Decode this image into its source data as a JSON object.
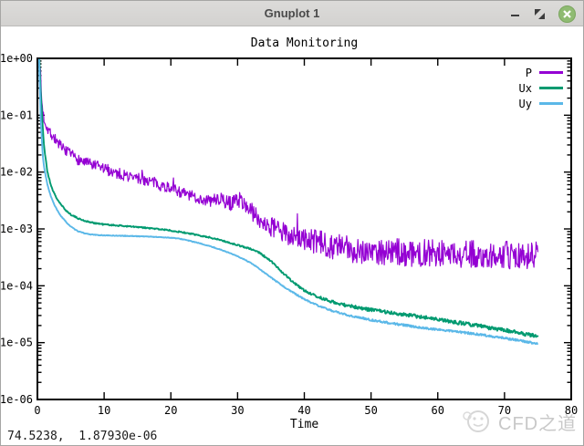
{
  "window": {
    "title": "Gnuplot 1",
    "controls": {
      "minimize": "minimize",
      "restore": "restore",
      "close": "close"
    }
  },
  "status_bar": {
    "coords": "74.5238,  1.87930e-06"
  },
  "watermark": {
    "text": "CFD之道"
  },
  "chart_data": {
    "type": "line",
    "title": "Data Monitoring",
    "xlabel": "Time",
    "ylabel": "",
    "xlim": [
      0,
      80
    ],
    "ylim": [
      1e-06,
      1
    ],
    "yscale": "log",
    "grid": false,
    "legend_position": "top-right",
    "x_ticks": [
      0,
      10,
      20,
      30,
      40,
      50,
      60,
      70,
      80
    ],
    "y_ticks": [
      "1e+00",
      "1e-01",
      "1e-02",
      "1e-03",
      "1e-04",
      "1e-05",
      "1e-06"
    ],
    "series": [
      {
        "name": "P",
        "color": "#9400d3",
        "stroke_width": 1.2,
        "seed": 7,
        "spiky": true,
        "noise": {
          "a0": 0.1,
          "a1": 0.24,
          "x0": 25,
          "x1": 45
        },
        "points": [
          [
            0.4,
            0.9
          ],
          [
            0.6,
            0.2
          ],
          [
            0.8,
            0.12
          ],
          [
            1,
            0.085
          ],
          [
            1.5,
            0.06
          ],
          [
            2,
            0.048
          ],
          [
            2.5,
            0.04
          ],
          [
            3,
            0.034
          ],
          [
            3.5,
            0.028
          ],
          [
            4,
            0.024
          ],
          [
            5,
            0.02
          ],
          [
            6,
            0.017
          ],
          [
            7,
            0.015
          ],
          [
            8,
            0.0135
          ],
          [
            9,
            0.0125
          ],
          [
            10,
            0.0115
          ],
          [
            11,
            0.0105
          ],
          [
            12,
            0.0095
          ],
          [
            13,
            0.0088
          ],
          [
            14,
            0.0082
          ],
          [
            15,
            0.0078
          ],
          [
            16,
            0.0074
          ],
          [
            17,
            0.0068
          ],
          [
            18,
            0.0062
          ],
          [
            19,
            0.0056
          ],
          [
            20,
            0.0052
          ],
          [
            21,
            0.0047
          ],
          [
            22,
            0.0042
          ],
          [
            23,
            0.0038
          ],
          [
            24,
            0.0035
          ],
          [
            25,
            0.0032
          ],
          [
            26,
            0.0031
          ],
          [
            27,
            0.0034
          ],
          [
            28,
            0.0031
          ],
          [
            29,
            0.0028
          ],
          [
            30,
            0.0034
          ],
          [
            31,
            0.0028
          ],
          [
            32,
            0.0021
          ],
          [
            33,
            0.0016
          ],
          [
            34,
            0.0013
          ],
          [
            35,
            0.0011
          ],
          [
            36,
            0.00095
          ],
          [
            37,
            0.00085
          ],
          [
            38,
            0.00078
          ],
          [
            39,
            0.00072
          ],
          [
            40,
            0.00066
          ],
          [
            41,
            0.00062
          ],
          [
            42,
            0.00058
          ],
          [
            43,
            0.00054
          ],
          [
            44,
            0.00051
          ],
          [
            45,
            0.00048
          ],
          [
            46,
            0.00046
          ],
          [
            47,
            0.00044
          ],
          [
            48,
            0.00043
          ],
          [
            49,
            0.00042
          ],
          [
            50,
            0.00041
          ],
          [
            52,
            0.0004
          ],
          [
            54,
            0.00039
          ],
          [
            56,
            0.00038
          ],
          [
            58,
            0.00038
          ],
          [
            60,
            0.00037
          ],
          [
            62,
            0.00037
          ],
          [
            64,
            0.00036
          ],
          [
            66,
            0.00036
          ],
          [
            68,
            0.00035
          ],
          [
            70,
            0.00035
          ],
          [
            72,
            0.00035
          ],
          [
            74,
            0.00034
          ],
          [
            75,
            0.00034
          ]
        ]
      },
      {
        "name": "Ux",
        "color": "#009a70",
        "stroke_width": 1.9,
        "seed": 21,
        "spiky": false,
        "noise": {
          "a0": 0.012,
          "a1": 0.032,
          "x0": 30,
          "x1": 50
        },
        "points": [
          [
            0.3,
            0.95
          ],
          [
            0.5,
            0.25
          ],
          [
            0.8,
            0.06
          ],
          [
            1,
            0.028
          ],
          [
            1.5,
            0.01
          ],
          [
            2,
            0.006
          ],
          [
            2.5,
            0.0042
          ],
          [
            3,
            0.0033
          ],
          [
            3.5,
            0.0027
          ],
          [
            4,
            0.0023
          ],
          [
            4.5,
            0.002
          ],
          [
            5,
            0.0018
          ],
          [
            6,
            0.00155
          ],
          [
            7,
            0.0014
          ],
          [
            8,
            0.0013
          ],
          [
            9,
            0.00125
          ],
          [
            10,
            0.0012
          ],
          [
            12,
            0.00115
          ],
          [
            14,
            0.0011
          ],
          [
            16,
            0.00105
          ],
          [
            17,
            0.00102
          ],
          [
            18,
            0.001
          ],
          [
            19,
            0.00097
          ],
          [
            20,
            0.00094
          ],
          [
            21,
            0.0009
          ],
          [
            22,
            0.00086
          ],
          [
            23,
            0.00082
          ],
          [
            24,
            0.00078
          ],
          [
            25,
            0.00074
          ],
          [
            26,
            0.0007
          ],
          [
            27,
            0.00066
          ],
          [
            28,
            0.00061
          ],
          [
            29,
            0.00056
          ],
          [
            30,
            0.00052
          ],
          [
            31,
            0.00048
          ],
          [
            32,
            0.00044
          ],
          [
            33,
            0.0004
          ],
          [
            34,
            0.00033
          ],
          [
            35,
            0.00027
          ],
          [
            36,
            0.00021
          ],
          [
            37,
            0.00016
          ],
          [
            38,
            0.000125
          ],
          [
            39,
            0.0001
          ],
          [
            40,
            8.3e-05
          ],
          [
            41,
            7.2e-05
          ],
          [
            42,
            6.4e-05
          ],
          [
            43,
            5.8e-05
          ],
          [
            44,
            5.3e-05
          ],
          [
            45,
            4.9e-05
          ],
          [
            46,
            4.6e-05
          ],
          [
            47,
            4.35e-05
          ],
          [
            48,
            4.15e-05
          ],
          [
            49,
            3.95e-05
          ],
          [
            50,
            3.8e-05
          ],
          [
            52,
            3.5e-05
          ],
          [
            54,
            3.25e-05
          ],
          [
            56,
            3e-05
          ],
          [
            58,
            2.8e-05
          ],
          [
            60,
            2.55e-05
          ],
          [
            62,
            2.35e-05
          ],
          [
            64,
            2.15e-05
          ],
          [
            66,
            2e-05
          ],
          [
            68,
            1.8e-05
          ],
          [
            70,
            1.65e-05
          ],
          [
            72,
            1.5e-05
          ],
          [
            74,
            1.35e-05
          ],
          [
            75,
            1.3e-05
          ]
        ]
      },
      {
        "name": "Uy",
        "color": "#5bb8e8",
        "stroke_width": 1.9,
        "seed": 33,
        "spiky": false,
        "noise": {
          "a0": 0.006,
          "a1": 0.018,
          "x0": 30,
          "x1": 50
        },
        "points": [
          [
            0.25,
            0.95
          ],
          [
            0.5,
            0.08
          ],
          [
            0.8,
            0.02
          ],
          [
            1,
            0.012
          ],
          [
            1.5,
            0.006
          ],
          [
            2,
            0.0038
          ],
          [
            2.5,
            0.0027
          ],
          [
            3,
            0.0021
          ],
          [
            3.5,
            0.0017
          ],
          [
            4,
            0.00145
          ],
          [
            4.5,
            0.00125
          ],
          [
            5,
            0.0011
          ],
          [
            5.5,
            0.001
          ],
          [
            6,
            0.00092
          ],
          [
            7,
            0.00084
          ],
          [
            8,
            0.0008
          ],
          [
            9,
            0.00078
          ],
          [
            10,
            0.00077
          ],
          [
            12,
            0.00076
          ],
          [
            14,
            0.00075
          ],
          [
            16,
            0.00074
          ],
          [
            18,
            0.00072
          ],
          [
            19,
            0.00071
          ],
          [
            20,
            0.0007
          ],
          [
            21,
            0.00068
          ],
          [
            22,
            0.00065
          ],
          [
            23,
            0.00061
          ],
          [
            24,
            0.00057
          ],
          [
            25,
            0.00053
          ],
          [
            26,
            0.00049
          ],
          [
            27,
            0.00045
          ],
          [
            28,
            0.00041
          ],
          [
            29,
            0.00037
          ],
          [
            30,
            0.00033
          ],
          [
            31,
            0.00029
          ],
          [
            32,
            0.00025
          ],
          [
            33,
            0.00021
          ],
          [
            34,
            0.00017
          ],
          [
            35,
            0.00014
          ],
          [
            36,
            0.000115
          ],
          [
            37,
            9.5e-05
          ],
          [
            38,
            8e-05
          ],
          [
            39,
            6.8e-05
          ],
          [
            40,
            5.8e-05
          ],
          [
            41,
            5.1e-05
          ],
          [
            42,
            4.5e-05
          ],
          [
            43,
            4.05e-05
          ],
          [
            44,
            3.7e-05
          ],
          [
            45,
            3.4e-05
          ],
          [
            46,
            3.15e-05
          ],
          [
            47,
            2.95e-05
          ],
          [
            48,
            2.8e-05
          ],
          [
            49,
            2.65e-05
          ],
          [
            50,
            2.5e-05
          ],
          [
            52,
            2.3e-05
          ],
          [
            54,
            2.1e-05
          ],
          [
            56,
            1.95e-05
          ],
          [
            58,
            1.8e-05
          ],
          [
            60,
            1.7e-05
          ],
          [
            62,
            1.6e-05
          ],
          [
            64,
            1.5e-05
          ],
          [
            66,
            1.4e-05
          ],
          [
            68,
            1.3e-05
          ],
          [
            70,
            1.2e-05
          ],
          [
            72,
            1.1e-05
          ],
          [
            74,
            1e-05
          ],
          [
            75,
            9.5e-06
          ]
        ]
      }
    ]
  }
}
